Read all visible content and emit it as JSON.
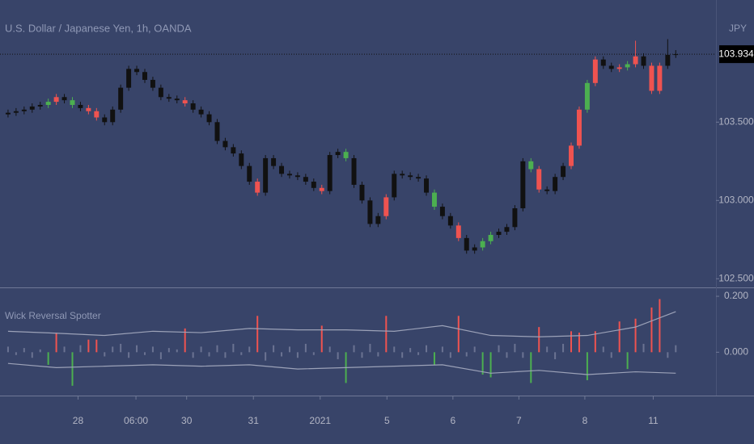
{
  "chart_data": [
    {
      "type": "candlestick",
      "title": "U.S. Dollar / Japanese Yen, 1h, OANDA",
      "currency": "JPY",
      "color": "#111111",
      "open": [
        103.55,
        103.56,
        103.57,
        103.58,
        103.6,
        103.61,
        103.63,
        103.66,
        103.64,
        103.61,
        103.59,
        103.57,
        103.53,
        103.5,
        103.58,
        103.72,
        103.84,
        103.82,
        103.77,
        103.72,
        103.66,
        103.65,
        103.64,
        103.62,
        103.58,
        103.55,
        103.5,
        103.38,
        103.34,
        103.3,
        103.22,
        103.12,
        103.05,
        103.27,
        103.22,
        103.17,
        103.16,
        103.15,
        103.12,
        103.08,
        103.06,
        103.29,
        103.31,
        103.27,
        103.1,
        103.0,
        102.85,
        102.9,
        103.02,
        103.17,
        103.16,
        103.15,
        103.14,
        103.05,
        102.96,
        102.9,
        102.84,
        102.76,
        102.68,
        102.7,
        102.74,
        102.78,
        102.8,
        102.83,
        102.95,
        103.25,
        103.2,
        103.07,
        103.06,
        103.15,
        103.22,
        103.35,
        103.58,
        103.75,
        103.9,
        103.86,
        103.84,
        103.85,
        103.87,
        103.92,
        103.86,
        103.7,
        103.86,
        103.93
      ],
      "high": [
        103.58,
        103.59,
        103.6,
        103.62,
        103.63,
        103.65,
        103.68,
        103.68,
        103.66,
        103.63,
        103.61,
        103.59,
        103.55,
        103.6,
        103.74,
        103.86,
        103.86,
        103.84,
        103.79,
        103.74,
        103.68,
        103.67,
        103.66,
        103.64,
        103.6,
        103.57,
        103.52,
        103.4,
        103.36,
        103.32,
        103.24,
        103.14,
        103.29,
        103.29,
        103.24,
        103.19,
        103.18,
        103.17,
        103.14,
        103.1,
        103.31,
        103.33,
        103.33,
        103.29,
        103.12,
        103.02,
        102.92,
        103.04,
        103.19,
        103.19,
        103.18,
        103.17,
        103.16,
        103.07,
        102.98,
        102.92,
        102.86,
        102.78,
        102.72,
        102.76,
        102.8,
        102.82,
        102.85,
        102.97,
        103.27,
        103.27,
        103.22,
        103.09,
        103.17,
        103.24,
        103.37,
        103.6,
        103.77,
        103.92,
        103.92,
        103.88,
        103.87,
        103.89,
        104.02,
        103.94,
        103.88,
        103.88,
        104.03,
        103.96
      ],
      "low": [
        103.53,
        103.54,
        103.55,
        103.56,
        103.58,
        103.59,
        103.61,
        103.62,
        103.59,
        103.57,
        103.55,
        103.51,
        103.48,
        103.48,
        103.56,
        103.7,
        103.8,
        103.75,
        103.7,
        103.64,
        103.63,
        103.62,
        103.6,
        103.56,
        103.53,
        103.48,
        103.36,
        103.32,
        103.28,
        103.2,
        103.1,
        103.03,
        103.03,
        103.2,
        103.15,
        103.14,
        103.13,
        103.1,
        103.06,
        103.04,
        103.04,
        103.27,
        103.25,
        103.08,
        102.98,
        102.83,
        102.83,
        102.88,
        103.0,
        103.14,
        103.13,
        103.12,
        103.03,
        102.94,
        102.88,
        102.82,
        102.74,
        102.66,
        102.66,
        102.68,
        102.72,
        102.76,
        102.78,
        102.81,
        102.93,
        103.18,
        103.05,
        103.04,
        103.04,
        103.13,
        103.2,
        103.33,
        103.56,
        103.73,
        103.84,
        103.82,
        103.82,
        103.83,
        103.85,
        103.84,
        103.68,
        103.68,
        103.84,
        103.91
      ],
      "close": [
        103.56,
        103.57,
        103.58,
        103.6,
        103.61,
        103.63,
        103.66,
        103.64,
        103.61,
        103.59,
        103.57,
        103.53,
        103.5,
        103.58,
        103.72,
        103.84,
        103.82,
        103.77,
        103.72,
        103.66,
        103.65,
        103.64,
        103.62,
        103.58,
        103.55,
        103.5,
        103.38,
        103.34,
        103.3,
        103.22,
        103.12,
        103.05,
        103.27,
        103.22,
        103.17,
        103.16,
        103.15,
        103.12,
        103.08,
        103.06,
        103.29,
        103.31,
        103.27,
        103.1,
        103.0,
        102.85,
        102.9,
        103.02,
        103.17,
        103.16,
        103.15,
        103.14,
        103.05,
        102.96,
        102.9,
        102.84,
        102.76,
        102.68,
        102.7,
        102.74,
        102.78,
        102.8,
        102.83,
        102.95,
        103.25,
        103.2,
        103.07,
        103.06,
        103.15,
        103.22,
        103.35,
        103.58,
        103.75,
        103.9,
        103.86,
        103.84,
        103.85,
        103.87,
        103.92,
        103.86,
        103.7,
        103.86,
        103.93,
        103.934
      ],
      "last_price": 103.934,
      "xlim": [
        -1,
        88
      ],
      "xticks": [
        {
          "value": 8.7,
          "label": "28"
        },
        {
          "value": 15.9,
          "label": "06:00"
        },
        {
          "value": 22.2,
          "label": "30"
        },
        {
          "value": 30.5,
          "label": "31"
        },
        {
          "value": 38.8,
          "label": "2021"
        },
        {
          "value": 47.1,
          "label": "5"
        },
        {
          "value": 55.3,
          "label": "6"
        },
        {
          "value": 63.5,
          "label": "7"
        },
        {
          "value": 71.7,
          "label": "8"
        },
        {
          "value": 80.2,
          "label": "11"
        }
      ],
      "ylim": [
        102.45,
        104.28
      ],
      "yticks": [
        {
          "value": 102.5,
          "label": "102.500"
        },
        {
          "value": 103,
          "label": "103.000"
        },
        {
          "value": 103.5,
          "label": "103.500"
        }
      ]
    },
    {
      "type": "histogram",
      "title": "Wick Reversal Spotter",
      "color": "#6b7392",
      "up_color": "#ef5350",
      "down_color": "#4caf50",
      "threshold": 0.04,
      "band_color": "#9ca2b8",
      "values": [
        0.02,
        -0.01,
        0.015,
        -0.02,
        0.01,
        -0.045,
        0.07,
        0.02,
        -0.12,
        0.025,
        0.045,
        0.045,
        -0.015,
        0.02,
        0.03,
        -0.02,
        0.025,
        -0.01,
        0.02,
        -0.025,
        0.015,
        0.01,
        0.085,
        -0.02,
        0.02,
        -0.015,
        0.025,
        -0.02,
        0.03,
        -0.01,
        0.02,
        0.13,
        -0.03,
        0.025,
        -0.015,
        0.02,
        -0.02,
        0.03,
        -0.01,
        0.095,
        0.02,
        -0.025,
        -0.11,
        0.025,
        -0.02,
        0.03,
        -0.015,
        0.13,
        0.02,
        -0.02,
        0.015,
        -0.01,
        0.025,
        -0.045,
        0.02,
        -0.02,
        0.13,
        -0.015,
        0.02,
        -0.08,
        -0.09,
        0.025,
        -0.02,
        0.03,
        -0.02,
        -0.11,
        0.09,
        0.02,
        -0.025,
        0.03,
        0.075,
        0.07,
        -0.1,
        0.075,
        0.02,
        -0.02,
        0.11,
        -0.06,
        0.12,
        0.03,
        0.16,
        0.19,
        -0.02,
        0.025
      ],
      "bands": {
        "x": [
          0,
          6,
          12,
          18,
          24,
          30,
          36,
          42,
          48,
          54,
          60,
          66,
          72,
          78,
          83
        ],
        "upper": [
          0.075,
          0.068,
          0.06,
          0.075,
          0.07,
          0.085,
          0.08,
          0.08,
          0.075,
          0.095,
          0.06,
          0.055,
          0.06,
          0.09,
          0.145
        ],
        "lower": [
          -0.04,
          -0.055,
          -0.05,
          -0.045,
          -0.05,
          -0.045,
          -0.06,
          -0.055,
          -0.05,
          -0.045,
          -0.075,
          -0.065,
          -0.08,
          -0.07,
          -0.075
        ]
      },
      "xlim": [
        -1,
        88
      ],
      "ylim": [
        -0.155,
        0.229
      ],
      "yticks": [
        {
          "value": 0,
          "label": "0.000"
        },
        {
          "value": 0.2,
          "label": "0.200"
        }
      ]
    }
  ]
}
